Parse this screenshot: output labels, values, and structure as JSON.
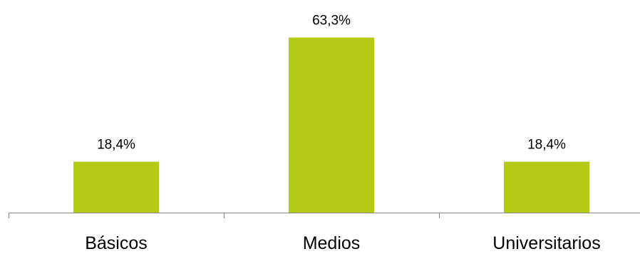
{
  "chart_data": {
    "type": "bar",
    "categories": [
      "Básicos",
      "Medios",
      "Universitarios"
    ],
    "values": [
      18.4,
      63.3,
      18.4
    ],
    "data_labels": [
      "18,4%",
      "63,3%",
      "18,4%"
    ],
    "title": "",
    "xlabel": "",
    "ylabel": "",
    "ylim": [
      0,
      70
    ],
    "grid": false,
    "legend": "none",
    "bar_color": "#B5CA14",
    "axis_color": "#868686"
  }
}
